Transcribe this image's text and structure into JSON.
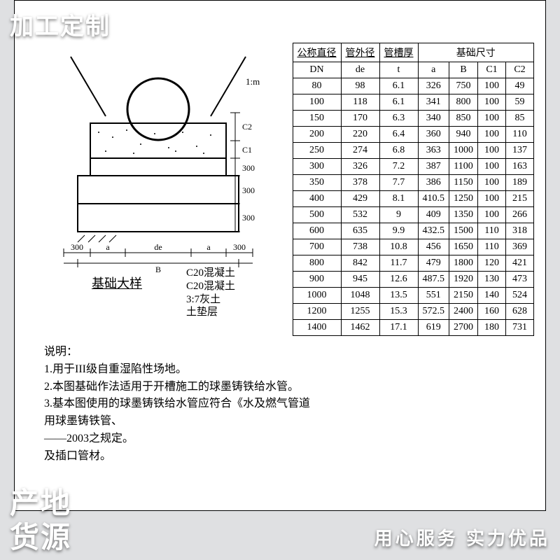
{
  "badges": {
    "top": "加工定制",
    "bottom_line1": "产地",
    "bottom_line2": "货源",
    "slogan": "用心服务    实力优品"
  },
  "colors": {
    "badge_text": "#ffffff",
    "page_bg": "#dfe0e2",
    "doc_bg": "#ffffff",
    "table_border": "#000000"
  },
  "diagram": {
    "caption": "基础大样",
    "leader_lines": [
      "C20混凝土",
      "C20混凝土",
      "3:7灰土",
      "土垫层"
    ],
    "right_slope_label": "1:m",
    "dim_v1": "C2",
    "dim_v2": "C1",
    "dim_v3": "300",
    "dim_v4": "300",
    "dim_h_left_pad": "300",
    "dim_h_a": "a",
    "dim_h_de": "de",
    "dim_h_a2": "a",
    "dim_h_right_pad": "300",
    "dim_h_B": "B"
  },
  "notes": {
    "heading": "说明：",
    "lines": [
      "1.用于III级自重湿陷性场地。",
      "2.本图基础作法适用于开槽施工的球墨铸铁给水管。",
      "3.基本图使用的球墨铸铁给水管应符合《水及燃气管道用球墨铸铁管、",
      "  ——2003之规定。",
      "                    及插口管材。"
    ]
  },
  "table": {
    "header_row1": [
      "公称直径",
      "管外径",
      "管槽厚",
      "基础尺寸"
    ],
    "header_row2": [
      "DN",
      "de",
      "t",
      "a",
      "B",
      "C1",
      "C2"
    ],
    "underline_cols": [
      0,
      1,
      2
    ],
    "rows": [
      [
        "80",
        "98",
        "6.1",
        "326",
        "750",
        "100",
        "49"
      ],
      [
        "100",
        "118",
        "6.1",
        "341",
        "800",
        "100",
        "59"
      ],
      [
        "150",
        "170",
        "6.3",
        "340",
        "850",
        "100",
        "85"
      ],
      [
        "200",
        "220",
        "6.4",
        "360",
        "940",
        "100",
        "110"
      ],
      [
        "250",
        "274",
        "6.8",
        "363",
        "1000",
        "100",
        "137"
      ],
      [
        "300",
        "326",
        "7.2",
        "387",
        "1100",
        "100",
        "163"
      ],
      [
        "350",
        "378",
        "7.7",
        "386",
        "1150",
        "100",
        "189"
      ],
      [
        "400",
        "429",
        "8.1",
        "410.5",
        "1250",
        "100",
        "215"
      ],
      [
        "500",
        "532",
        "9",
        "409",
        "1350",
        "100",
        "266"
      ],
      [
        "600",
        "635",
        "9.9",
        "432.5",
        "1500",
        "110",
        "318"
      ],
      [
        "700",
        "738",
        "10.8",
        "456",
        "1650",
        "110",
        "369"
      ],
      [
        "800",
        "842",
        "11.7",
        "479",
        "1800",
        "120",
        "421"
      ],
      [
        "900",
        "945",
        "12.6",
        "487.5",
        "1920",
        "130",
        "473"
      ],
      [
        "1000",
        "1048",
        "13.5",
        "551",
        "2150",
        "140",
        "524"
      ],
      [
        "1200",
        "1255",
        "15.3",
        "572.5",
        "2400",
        "160",
        "628"
      ],
      [
        "1400",
        "1462",
        "17.1",
        "619",
        "2700",
        "180",
        "731"
      ]
    ]
  }
}
